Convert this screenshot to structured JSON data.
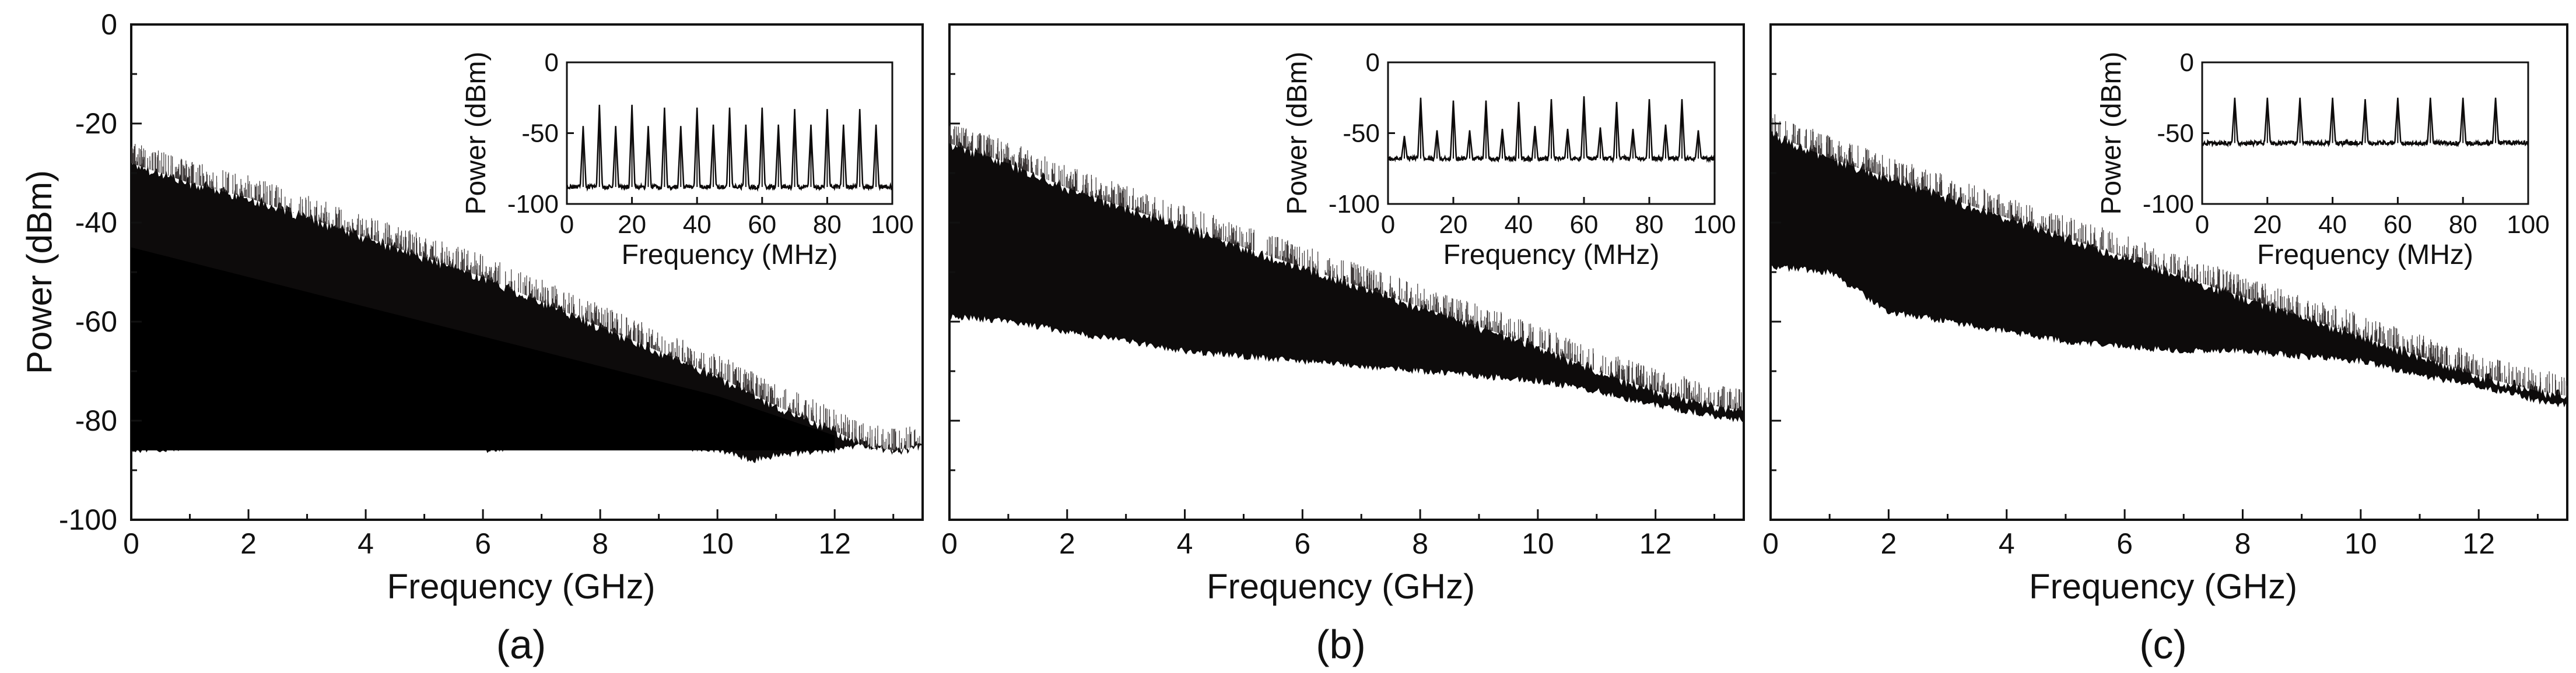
{
  "chart_data": [
    {
      "type": "area",
      "panel": "(a)",
      "xlabel": "Frequency (GHz)",
      "ylabel": "Power (dBm)",
      "xlim": [
        0,
        13.5
      ],
      "ylim": [
        -100,
        0
      ],
      "xticks": [
        0,
        2,
        4,
        6,
        8,
        10,
        12
      ],
      "yticks": [
        0,
        -20,
        -40,
        -60,
        -80,
        -100
      ],
      "upper_envelope": {
        "x": [
          0,
          1,
          2,
          3,
          4,
          5,
          6,
          7,
          8,
          9,
          10,
          11,
          12,
          12.5,
          13,
          13.5
        ],
        "y": [
          -28,
          -32,
          -35,
          -39,
          -43,
          -47,
          -51,
          -56,
          -61,
          -66,
          -71,
          -77,
          -82,
          -85,
          -86,
          -85
        ]
      },
      "lower_envelope": {
        "x": [
          0,
          1,
          2,
          3,
          4,
          4.2,
          4.5,
          5,
          6,
          6.05,
          7,
          8,
          9,
          10,
          10.6,
          11,
          12,
          12.5,
          13,
          13.5
        ],
        "y": [
          -86,
          -85.5,
          -85,
          -85,
          -84,
          -81,
          -84,
          -83,
          -83,
          -86,
          -85,
          -85,
          -85,
          -86,
          -88,
          -87,
          -86,
          -85,
          -86,
          -85
        ]
      },
      "dense_floor": {
        "x": [
          0,
          1,
          2,
          3,
          4,
          5,
          6,
          7,
          8,
          9,
          10,
          11,
          12
        ],
        "y": [
          -45,
          -48,
          -51,
          -54,
          -57,
          -60,
          -63,
          -66,
          -69,
          -72,
          -75,
          -79,
          -83
        ]
      },
      "inset": {
        "type": "line",
        "xlabel": "Frequency (MHz)",
        "ylabel": "Power (dBm)",
        "xlim": [
          0,
          100
        ],
        "ylim": [
          -100,
          0
        ],
        "xticks": [
          0,
          20,
          40,
          60,
          80,
          100
        ],
        "yticks": [
          0,
          -50,
          -100
        ],
        "baseline": -88,
        "peaks": {
          "x": [
            5,
            10,
            15,
            20,
            25,
            30,
            35,
            40,
            45,
            50,
            55,
            60,
            65,
            70,
            75,
            80,
            85,
            90,
            95
          ],
          "y": [
            -45,
            -30,
            -45,
            -30,
            -45,
            -32,
            -45,
            -32,
            -44,
            -32,
            -44,
            -32,
            -44,
            -33,
            -44,
            -33,
            -44,
            -33,
            -44
          ]
        }
      }
    },
    {
      "type": "area",
      "panel": "(b)",
      "xlabel": "Frequency (GHz)",
      "ylabel": "",
      "xlim": [
        0,
        13.5
      ],
      "ylim": [
        -100,
        0
      ],
      "xticks": [
        0,
        2,
        4,
        6,
        8,
        10,
        12
      ],
      "yticks": [
        0,
        -20,
        -40,
        -60,
        -80,
        -100
      ],
      "upper_envelope": {
        "x": [
          0,
          1,
          2,
          3,
          4,
          5,
          6,
          7,
          8,
          9,
          10,
          11,
          12,
          13,
          13.5
        ],
        "y": [
          -24,
          -28,
          -33,
          -37,
          -41,
          -45,
          -49,
          -53,
          -57,
          -61,
          -65,
          -70,
          -74,
          -77,
          -78
        ]
      },
      "lower_envelope": {
        "x": [
          0,
          1,
          2,
          3,
          4,
          5,
          6,
          7,
          8,
          9,
          10,
          11,
          12,
          13,
          13.5
        ],
        "y": [
          -59,
          -60,
          -62,
          -64,
          -66,
          -67,
          -68,
          -69,
          -70,
          -71,
          -72,
          -74,
          -77,
          -79,
          -80
        ]
      },
      "inset": {
        "type": "line",
        "xlabel": "Frequency (MHz)",
        "ylabel": "Power (dBm)",
        "xlim": [
          0,
          100
        ],
        "ylim": [
          -100,
          0
        ],
        "xticks": [
          0,
          20,
          40,
          60,
          80,
          100
        ],
        "yticks": [
          0,
          -50,
          -100
        ],
        "baseline": -68,
        "peaks": {
          "x": [
            5,
            10,
            15,
            20,
            25,
            30,
            35,
            40,
            45,
            50,
            55,
            60,
            65,
            70,
            75,
            80,
            85,
            90,
            95
          ],
          "y": [
            -52,
            -25,
            -48,
            -27,
            -48,
            -27,
            -47,
            -28,
            -45,
            -26,
            -47,
            -24,
            -46,
            -28,
            -47,
            -26,
            -44,
            -26,
            -48
          ]
        }
      }
    },
    {
      "type": "area",
      "panel": "(c)",
      "xlabel": "Frequency (GHz)",
      "ylabel": "",
      "xlim": [
        0,
        13.5
      ],
      "ylim": [
        -100,
        0
      ],
      "xticks": [
        0,
        2,
        4,
        6,
        8,
        10,
        12
      ],
      "yticks": [
        0,
        -20,
        -40,
        -60,
        -80,
        -100
      ],
      "upper_envelope": {
        "x": [
          0,
          1,
          2,
          3,
          4,
          5,
          6,
          7,
          8,
          9,
          10,
          11,
          12,
          13,
          13.5
        ],
        "y": [
          -22,
          -27,
          -31,
          -35,
          -39,
          -43,
          -47,
          -51,
          -55,
          -59,
          -63,
          -67,
          -71,
          -74,
          -75
        ]
      },
      "lower_envelope": {
        "x": [
          0,
          1,
          1.5,
          2,
          2.5,
          3,
          4,
          5,
          6,
          7,
          8,
          9,
          10,
          11,
          12,
          13,
          13.5
        ],
        "y": [
          -49,
          -50,
          -54,
          -58,
          -59,
          -60,
          -62,
          -64,
          -65,
          -66,
          -66,
          -67,
          -68,
          -71,
          -73,
          -76,
          -77
        ]
      },
      "inset": {
        "type": "line",
        "xlabel": "Frequency (MHz)",
        "ylabel": "Power (dBm)",
        "xlim": [
          0,
          100
        ],
        "ylim": [
          -100,
          0
        ],
        "xticks": [
          0,
          20,
          40,
          60,
          80,
          100
        ],
        "yticks": [
          0,
          -50,
          -100
        ],
        "baseline": -57,
        "peaks": {
          "x": [
            10,
            20,
            30,
            40,
            50,
            60,
            70,
            80,
            90
          ],
          "y": [
            -25,
            -25,
            -25,
            -25,
            -26,
            -25,
            -25,
            -25,
            -25
          ]
        }
      }
    }
  ],
  "colors": {
    "trace": "#0d0b0b",
    "trace_light": "#3a3535",
    "axis": "#111111",
    "background": "#ffffff"
  }
}
